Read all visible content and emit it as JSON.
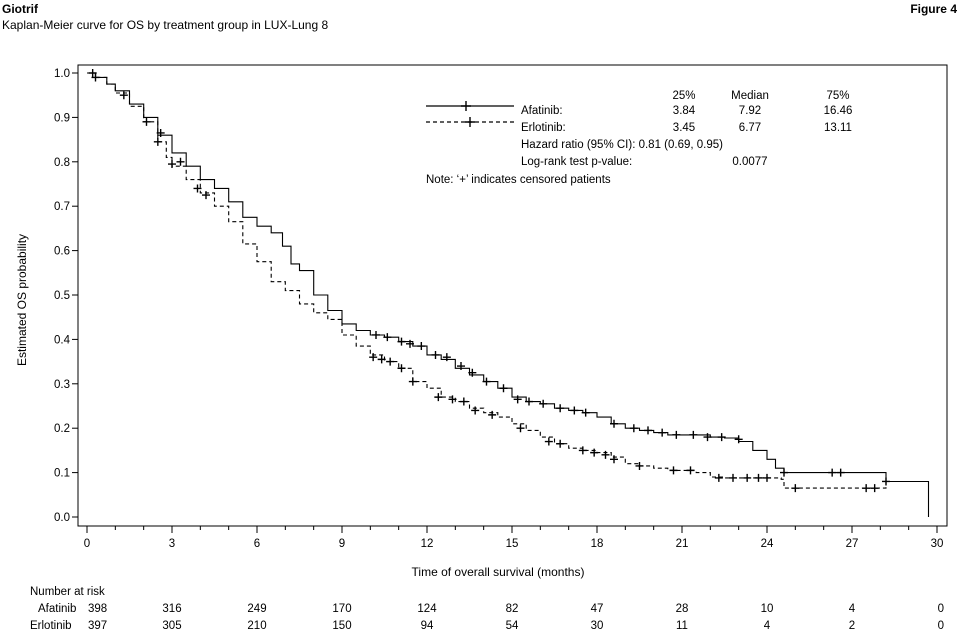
{
  "header": {
    "brand": "Giotrif",
    "figure": "Figure 4",
    "subtitle": "Kaplan-Meier curve for OS by treatment group in LUX-Lung 8"
  },
  "chart_data": {
    "type": "line",
    "xlabel": "Time of overall survival (months)",
    "ylabel": "Estimated OS probability",
    "xlim": [
      0,
      30
    ],
    "ylim": [
      0,
      1
    ],
    "xticks": [
      0,
      3,
      6,
      9,
      12,
      15,
      18,
      21,
      24,
      27,
      30
    ],
    "yticks": [
      "0.0",
      "0.1",
      "0.2",
      "0.3",
      "0.4",
      "0.5",
      "0.6",
      "0.7",
      "0.8",
      "0.9",
      "1.0"
    ],
    "grid": false,
    "series": [
      {
        "name": "Afatinib",
        "line_style": "solid",
        "color": "#000000",
        "points": [
          [
            0,
            1.0
          ],
          [
            0.3,
            0.99
          ],
          [
            0.7,
            0.975
          ],
          [
            1.0,
            0.96
          ],
          [
            1.5,
            0.93
          ],
          [
            2.0,
            0.9
          ],
          [
            2.5,
            0.86
          ],
          [
            3.0,
            0.82
          ],
          [
            3.5,
            0.79
          ],
          [
            4.0,
            0.76
          ],
          [
            4.5,
            0.74
          ],
          [
            5.0,
            0.71
          ],
          [
            5.5,
            0.675
          ],
          [
            6.0,
            0.655
          ],
          [
            6.5,
            0.64
          ],
          [
            6.9,
            0.61
          ],
          [
            7.2,
            0.57
          ],
          [
            7.5,
            0.555
          ],
          [
            8.0,
            0.5
          ],
          [
            8.5,
            0.465
          ],
          [
            9.0,
            0.435
          ],
          [
            9.5,
            0.42
          ],
          [
            10.0,
            0.41
          ],
          [
            10.5,
            0.405
          ],
          [
            11.0,
            0.395
          ],
          [
            11.5,
            0.385
          ],
          [
            12.0,
            0.365
          ],
          [
            12.5,
            0.355
          ],
          [
            13.0,
            0.335
          ],
          [
            13.5,
            0.32
          ],
          [
            14.0,
            0.305
          ],
          [
            14.5,
            0.29
          ],
          [
            15.0,
            0.27
          ],
          [
            15.5,
            0.26
          ],
          [
            16.0,
            0.255
          ],
          [
            16.5,
            0.245
          ],
          [
            17.0,
            0.24
          ],
          [
            17.5,
            0.235
          ],
          [
            18.0,
            0.225
          ],
          [
            18.5,
            0.21
          ],
          [
            19.0,
            0.2
          ],
          [
            19.5,
            0.195
          ],
          [
            20.0,
            0.19
          ],
          [
            20.5,
            0.185
          ],
          [
            21.0,
            0.185
          ],
          [
            22.0,
            0.18
          ],
          [
            22.5,
            0.178
          ],
          [
            23.0,
            0.17
          ],
          [
            23.5,
            0.15
          ],
          [
            24.0,
            0.13
          ],
          [
            24.3,
            0.11
          ],
          [
            24.6,
            0.1
          ],
          [
            25.0,
            0.1
          ],
          [
            26.5,
            0.1
          ],
          [
            28.2,
            0.1
          ],
          [
            28.2,
            0.08
          ],
          [
            29.7,
            0.08
          ],
          [
            29.7,
            0.0
          ]
        ],
        "censored": [
          [
            0.2,
            1.0
          ],
          [
            1.3,
            0.95
          ],
          [
            2.1,
            0.89
          ],
          [
            2.6,
            0.865
          ],
          [
            3.3,
            0.8
          ],
          [
            10.2,
            0.41
          ],
          [
            10.6,
            0.405
          ],
          [
            11.1,
            0.395
          ],
          [
            11.4,
            0.39
          ],
          [
            11.8,
            0.385
          ],
          [
            12.3,
            0.365
          ],
          [
            12.7,
            0.36
          ],
          [
            13.2,
            0.34
          ],
          [
            13.6,
            0.325
          ],
          [
            14.1,
            0.305
          ],
          [
            14.7,
            0.29
          ],
          [
            15.2,
            0.265
          ],
          [
            15.6,
            0.26
          ],
          [
            16.1,
            0.255
          ],
          [
            16.7,
            0.245
          ],
          [
            17.2,
            0.24
          ],
          [
            17.6,
            0.235
          ],
          [
            18.6,
            0.21
          ],
          [
            19.3,
            0.2
          ],
          [
            19.8,
            0.195
          ],
          [
            20.3,
            0.19
          ],
          [
            20.8,
            0.185
          ],
          [
            21.4,
            0.185
          ],
          [
            21.9,
            0.18
          ],
          [
            22.4,
            0.18
          ],
          [
            23.0,
            0.175
          ],
          [
            24.6,
            0.1
          ],
          [
            26.3,
            0.1
          ],
          [
            26.6,
            0.1
          ],
          [
            28.2,
            0.08
          ]
        ]
      },
      {
        "name": "Erlotinib",
        "line_style": "dashed",
        "color": "#000000",
        "points": [
          [
            0,
            1.0
          ],
          [
            0.3,
            0.99
          ],
          [
            0.7,
            0.975
          ],
          [
            1.0,
            0.955
          ],
          [
            1.5,
            0.925
          ],
          [
            2.0,
            0.89
          ],
          [
            2.5,
            0.845
          ],
          [
            2.8,
            0.81
          ],
          [
            3.0,
            0.79
          ],
          [
            3.5,
            0.76
          ],
          [
            4.0,
            0.73
          ],
          [
            4.5,
            0.7
          ],
          [
            5.0,
            0.665
          ],
          [
            5.5,
            0.615
          ],
          [
            6.0,
            0.575
          ],
          [
            6.5,
            0.53
          ],
          [
            7.0,
            0.51
          ],
          [
            7.5,
            0.48
          ],
          [
            8.0,
            0.46
          ],
          [
            8.5,
            0.445
          ],
          [
            9.0,
            0.41
          ],
          [
            9.5,
            0.385
          ],
          [
            10.0,
            0.365
          ],
          [
            10.5,
            0.35
          ],
          [
            11.0,
            0.335
          ],
          [
            11.5,
            0.305
          ],
          [
            12.0,
            0.29
          ],
          [
            12.5,
            0.27
          ],
          [
            13.0,
            0.26
          ],
          [
            13.5,
            0.245
          ],
          [
            14.0,
            0.235
          ],
          [
            14.5,
            0.225
          ],
          [
            15.0,
            0.21
          ],
          [
            15.5,
            0.195
          ],
          [
            16.0,
            0.18
          ],
          [
            16.5,
            0.165
          ],
          [
            17.0,
            0.155
          ],
          [
            17.5,
            0.15
          ],
          [
            18.0,
            0.145
          ],
          [
            18.5,
            0.135
          ],
          [
            19.0,
            0.12
          ],
          [
            19.5,
            0.115
          ],
          [
            20.0,
            0.11
          ],
          [
            20.5,
            0.105
          ],
          [
            21.0,
            0.105
          ],
          [
            21.5,
            0.1
          ],
          [
            22.0,
            0.09
          ],
          [
            22.5,
            0.088
          ],
          [
            23.5,
            0.088
          ],
          [
            24.5,
            0.085
          ],
          [
            24.6,
            0.065
          ],
          [
            25.5,
            0.065
          ],
          [
            27.5,
            0.065
          ],
          [
            28.2,
            0.08
          ]
        ],
        "censored": [
          [
            0.3,
            0.99
          ],
          [
            2.5,
            0.845
          ],
          [
            3.0,
            0.795
          ],
          [
            3.9,
            0.74
          ],
          [
            4.2,
            0.725
          ],
          [
            10.1,
            0.36
          ],
          [
            10.4,
            0.355
          ],
          [
            10.7,
            0.35
          ],
          [
            11.1,
            0.335
          ],
          [
            11.5,
            0.305
          ],
          [
            12.4,
            0.27
          ],
          [
            12.9,
            0.265
          ],
          [
            13.3,
            0.26
          ],
          [
            13.7,
            0.24
          ],
          [
            14.3,
            0.23
          ],
          [
            15.3,
            0.2
          ],
          [
            16.3,
            0.17
          ],
          [
            16.7,
            0.165
          ],
          [
            17.5,
            0.15
          ],
          [
            17.9,
            0.145
          ],
          [
            18.3,
            0.14
          ],
          [
            18.6,
            0.13
          ],
          [
            19.5,
            0.115
          ],
          [
            20.7,
            0.105
          ],
          [
            21.3,
            0.105
          ],
          [
            22.3,
            0.088
          ],
          [
            22.8,
            0.088
          ],
          [
            23.3,
            0.088
          ],
          [
            23.7,
            0.088
          ],
          [
            24.0,
            0.088
          ],
          [
            25.0,
            0.065
          ],
          [
            27.5,
            0.065
          ],
          [
            27.8,
            0.065
          ]
        ]
      }
    ],
    "legend": {
      "placement": "top-right",
      "columns": [
        "25%",
        "Median",
        "75%"
      ],
      "rows": [
        {
          "label": "Afatinib:",
          "values": [
            "3.84",
            "7.92",
            "16.46"
          ]
        },
        {
          "label": "Erlotinib:",
          "values": [
            "3.45",
            "6.77",
            "13.11"
          ]
        }
      ],
      "hazard_ratio": "Hazard ratio (95% CI): 0.81 (0.69, 0.95)",
      "logrank_label": "Log-rank test p-value:",
      "logrank_value": "0.0077",
      "note": "Note: ‘+’ indicates censored patients"
    },
    "risk_table": {
      "title": "Number at risk",
      "rows": [
        {
          "label": "Afatinib",
          "values": [
            "398",
            "316",
            "249",
            "170",
            "124",
            "82",
            "47",
            "28",
            "10",
            "4",
            "0"
          ]
        },
        {
          "label": "Erlotinib",
          "values": [
            "397",
            "305",
            "210",
            "150",
            "94",
            "54",
            "30",
            "11",
            "4",
            "2",
            "0"
          ]
        }
      ]
    }
  }
}
